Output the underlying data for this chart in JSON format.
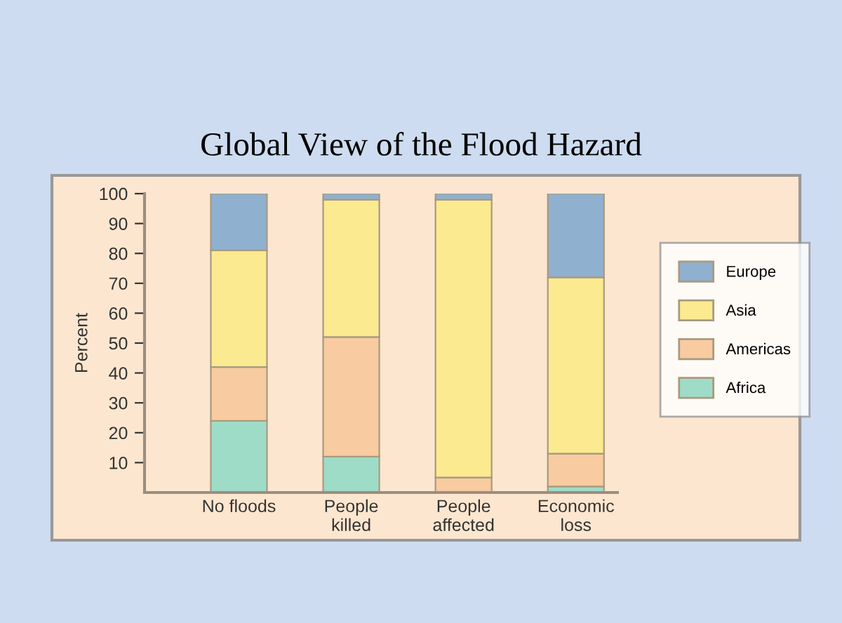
{
  "chart_data": {
    "type": "bar",
    "title": "Global View of the Flood Hazard",
    "ylabel": "Percent",
    "stacked": true,
    "categories": [
      "No floods",
      "People\nkilled",
      "People\naffected",
      "Economic\nloss"
    ],
    "series": [
      {
        "name": "Africa",
        "color": "#9fdcc8",
        "values": [
          24,
          12,
          0,
          2
        ]
      },
      {
        "name": "Americas",
        "color": "#f8cba0",
        "values": [
          18,
          40,
          5,
          11
        ]
      },
      {
        "name": "Asia",
        "color": "#fbea8f",
        "values": [
          39,
          46,
          93,
          59
        ]
      },
      {
        "name": "Europe",
        "color": "#8fb0cf",
        "values": [
          19,
          2,
          2,
          28
        ]
      }
    ],
    "ylim": [
      0,
      100
    ],
    "yticks": [
      10,
      20,
      30,
      40,
      50,
      60,
      70,
      80,
      90,
      100
    ],
    "grid": false,
    "legend": "right"
  }
}
